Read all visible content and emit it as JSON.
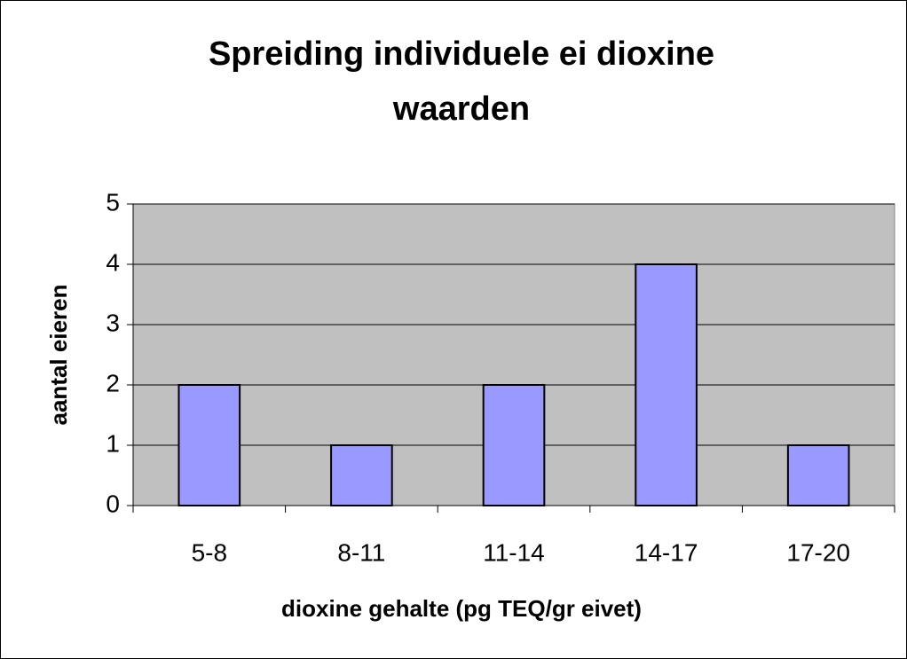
{
  "chart_data": {
    "type": "bar",
    "title": "Spreiding individuele ei dioxine waarden",
    "x_label": "dioxine gehalte (pg TEQ/gr eivet)",
    "y_label": "aantal eieren",
    "categories": [
      "5-8",
      "8-11",
      "11-14",
      "14-17",
      "17-20"
    ],
    "values": [
      2,
      1,
      2,
      4,
      1
    ],
    "color": "#9999ff",
    "ylim": [
      0,
      5
    ],
    "yticks": [
      0,
      1,
      2,
      3,
      4,
      5
    ],
    "grid": true
  }
}
